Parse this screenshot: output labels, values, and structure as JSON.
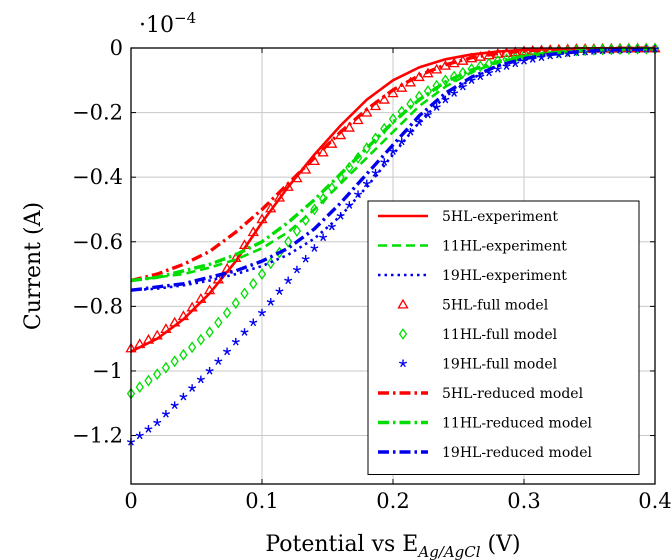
{
  "chart_data": {
    "type": "line",
    "title": "",
    "xlabel": "Potential vs E",
    "xlabel_sub": "Ag/AgCl",
    "xlabel_unit": " (V)",
    "ylabel": "Current (A)",
    "y_multiplier": "·10",
    "y_multiplier_exp": "−4",
    "xlim": [
      0,
      0.4
    ],
    "ylim": [
      -1.35,
      0
    ],
    "x_ticks": [
      0,
      0.1,
      0.2,
      0.3,
      0.4
    ],
    "x_tick_labels": [
      "0",
      "0.1",
      "0.2",
      "0.3",
      "0.4"
    ],
    "y_ticks": [
      0,
      -0.2,
      -0.4,
      -0.6,
      -0.8,
      -1.0,
      -1.2
    ],
    "y_tick_labels": [
      "0",
      "−0.2",
      "−0.4",
      "−0.6",
      "−0.8",
      "−1",
      "−1.2"
    ],
    "grid": true,
    "legend_position": "bottom-right",
    "series": [
      {
        "name": "5HL-experiment",
        "color": "#ff0000",
        "style": "solid",
        "marker": "none",
        "x": [
          0,
          0.02,
          0.04,
          0.06,
          0.08,
          0.1,
          0.12,
          0.14,
          0.16,
          0.18,
          0.2,
          0.22,
          0.24,
          0.26,
          0.28,
          0.3,
          0.32,
          0.34,
          0.36,
          0.38,
          0.4
        ],
        "y": [
          -0.94,
          -0.9,
          -0.84,
          -0.76,
          -0.66,
          -0.54,
          -0.43,
          -0.33,
          -0.24,
          -0.16,
          -0.1,
          -0.06,
          -0.035,
          -0.02,
          -0.011,
          -0.006,
          -0.003,
          -0.002,
          -0.001,
          -0.0005,
          0
        ]
      },
      {
        "name": "11HL-experiment",
        "color": "#00dd00",
        "style": "dashed",
        "marker": "none",
        "x": [
          0,
          0.02,
          0.04,
          0.06,
          0.08,
          0.1,
          0.12,
          0.14,
          0.16,
          0.18,
          0.2,
          0.22,
          0.24,
          0.26,
          0.28,
          0.3,
          0.32,
          0.34,
          0.36,
          0.38,
          0.4
        ],
        "y": [
          -0.72,
          -0.71,
          -0.7,
          -0.68,
          -0.655,
          -0.62,
          -0.57,
          -0.5,
          -0.42,
          -0.34,
          -0.26,
          -0.18,
          -0.12,
          -0.075,
          -0.045,
          -0.025,
          -0.014,
          -0.008,
          -0.004,
          -0.002,
          -0.001
        ]
      },
      {
        "name": "19HL-experiment",
        "color": "#0000ee",
        "style": "dotted",
        "marker": "none",
        "x": [
          0,
          0.02,
          0.04,
          0.06,
          0.08,
          0.1,
          0.12,
          0.14,
          0.16,
          0.18,
          0.2,
          0.22,
          0.24,
          0.26,
          0.28,
          0.3,
          0.32,
          0.34,
          0.36,
          0.38,
          0.4
        ],
        "y": [
          -0.75,
          -0.745,
          -0.735,
          -0.72,
          -0.7,
          -0.675,
          -0.64,
          -0.59,
          -0.52,
          -0.43,
          -0.33,
          -0.23,
          -0.15,
          -0.095,
          -0.055,
          -0.032,
          -0.018,
          -0.01,
          -0.005,
          -0.003,
          -0.002
        ]
      },
      {
        "name": "5HL-full model",
        "color": "#ff0000",
        "style": "none",
        "marker": "triangle",
        "x": [
          0,
          0.02,
          0.04,
          0.06,
          0.08,
          0.1,
          0.12,
          0.14,
          0.16,
          0.18,
          0.2,
          0.22,
          0.24,
          0.26,
          0.28,
          0.3,
          0.32,
          0.34,
          0.36,
          0.38,
          0.4
        ],
        "y": [
          -0.93,
          -0.89,
          -0.83,
          -0.75,
          -0.65,
          -0.53,
          -0.43,
          -0.35,
          -0.27,
          -0.2,
          -0.14,
          -0.09,
          -0.055,
          -0.032,
          -0.018,
          -0.01,
          -0.006,
          -0.003,
          -0.002,
          -0.001,
          -0.001
        ]
      },
      {
        "name": "11HL-full model",
        "color": "#00dd00",
        "style": "none",
        "marker": "diamond",
        "x": [
          0,
          0.02,
          0.04,
          0.06,
          0.08,
          0.1,
          0.12,
          0.14,
          0.16,
          0.18,
          0.2,
          0.22,
          0.24,
          0.26,
          0.28,
          0.3,
          0.32,
          0.34,
          0.36,
          0.38,
          0.4
        ],
        "y": [
          -1.07,
          -1.01,
          -0.95,
          -0.88,
          -0.79,
          -0.7,
          -0.6,
          -0.5,
          -0.4,
          -0.31,
          -0.22,
          -0.15,
          -0.1,
          -0.065,
          -0.04,
          -0.024,
          -0.014,
          -0.008,
          -0.005,
          -0.003,
          -0.002
        ]
      },
      {
        "name": "19HL-full model",
        "color": "#0000ee",
        "style": "none",
        "marker": "star",
        "x": [
          0,
          0.02,
          0.04,
          0.06,
          0.08,
          0.1,
          0.12,
          0.14,
          0.16,
          0.18,
          0.2,
          0.22,
          0.24,
          0.26,
          0.28,
          0.3,
          0.32,
          0.34,
          0.36,
          0.38,
          0.4
        ],
        "y": [
          -1.22,
          -1.16,
          -1.08,
          -1.0,
          -0.91,
          -0.82,
          -0.72,
          -0.62,
          -0.52,
          -0.42,
          -0.32,
          -0.23,
          -0.16,
          -0.1,
          -0.065,
          -0.04,
          -0.024,
          -0.014,
          -0.008,
          -0.005,
          -0.003
        ]
      },
      {
        "name": "5HL-reduced model",
        "color": "#ff0000",
        "style": "dashdot",
        "marker": "none",
        "x": [
          0,
          0.02,
          0.04,
          0.06,
          0.08,
          0.1,
          0.12,
          0.14,
          0.16,
          0.18,
          0.2,
          0.22,
          0.24,
          0.26,
          0.28,
          0.3,
          0.32,
          0.34,
          0.36,
          0.38,
          0.4
        ],
        "y": [
          -0.72,
          -0.7,
          -0.67,
          -0.63,
          -0.57,
          -0.5,
          -0.42,
          -0.34,
          -0.26,
          -0.19,
          -0.13,
          -0.085,
          -0.052,
          -0.03,
          -0.017,
          -0.009,
          -0.005,
          -0.003,
          -0.002,
          -0.001,
          0
        ]
      },
      {
        "name": "11HL-reduced model",
        "color": "#00dd00",
        "style": "dashdot",
        "marker": "none",
        "x": [
          0,
          0.02,
          0.04,
          0.06,
          0.08,
          0.1,
          0.12,
          0.14,
          0.16,
          0.18,
          0.2,
          0.22,
          0.24,
          0.26,
          0.28,
          0.3,
          0.32,
          0.34,
          0.36,
          0.38,
          0.4
        ],
        "y": [
          -0.72,
          -0.71,
          -0.69,
          -0.67,
          -0.64,
          -0.6,
          -0.54,
          -0.47,
          -0.39,
          -0.31,
          -0.23,
          -0.16,
          -0.105,
          -0.068,
          -0.042,
          -0.025,
          -0.015,
          -0.009,
          -0.005,
          -0.003,
          -0.002
        ]
      },
      {
        "name": "19HL-reduced model",
        "color": "#0000ee",
        "style": "dashdot",
        "marker": "none",
        "x": [
          0,
          0.02,
          0.04,
          0.06,
          0.08,
          0.1,
          0.12,
          0.14,
          0.16,
          0.18,
          0.2,
          0.22,
          0.24,
          0.26,
          0.28,
          0.3,
          0.32,
          0.34,
          0.36,
          0.38,
          0.4
        ],
        "y": [
          -0.75,
          -0.74,
          -0.73,
          -0.71,
          -0.69,
          -0.66,
          -0.62,
          -0.56,
          -0.48,
          -0.39,
          -0.3,
          -0.21,
          -0.14,
          -0.09,
          -0.055,
          -0.033,
          -0.02,
          -0.012,
          -0.007,
          -0.004,
          -0.003
        ]
      }
    ]
  }
}
